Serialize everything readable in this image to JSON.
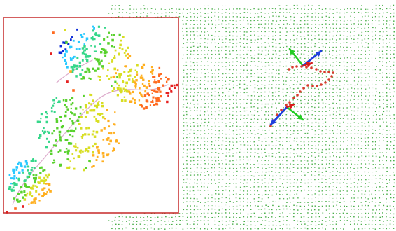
{
  "image": {
    "colors": {
      "background": "#ffffff",
      "point_cloud": "#3faa3f",
      "inset_border": "#c62828",
      "trajectory_points": "#d83a2c",
      "axis_blue": "#1f3fdc",
      "axis_green": "#22cc22",
      "axis_red": "#d81a1a",
      "inset_line": "#d9a3c6",
      "inset_palette": [
        "#0a2ad8",
        "#29c9ff",
        "#36d78a",
        "#58d12d",
        "#d8de23",
        "#ffaf1f",
        "#ff6a1f",
        "#e52121"
      ]
    },
    "icons": {
      "main_scene": "point-cloud-scene",
      "inset_scene": "colored-trajectory-inset",
      "upper_axes": "coordinate-axes",
      "lower_axes": "coordinate-axes"
    }
  }
}
